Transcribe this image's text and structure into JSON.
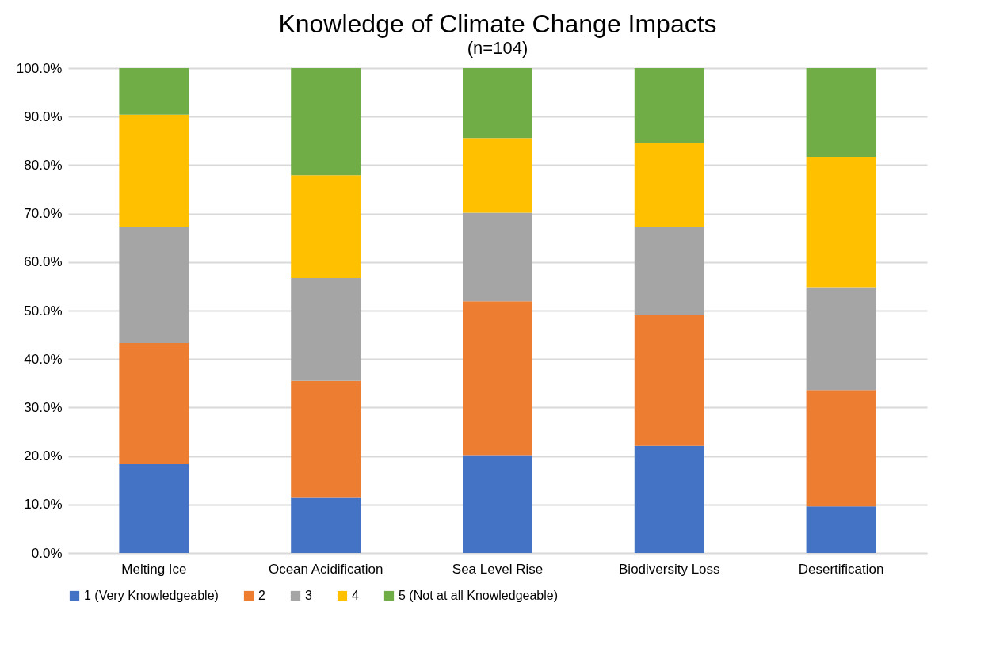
{
  "chart_data": {
    "type": "bar",
    "title": "Knowledge of Climate Change Impacts",
    "subtitle": "(n=104)",
    "categories": [
      "Melting Ice",
      "Ocean Acidification",
      "Sea Level Rise",
      "Biodiversity Loss",
      "Desertification"
    ],
    "stacked": true,
    "series": [
      {
        "name": "1 (Very Knowledgeable)",
        "color": "#4472c4",
        "values": [
          18.3,
          11.5,
          20.2,
          22.1,
          9.6
        ]
      },
      {
        "name": "2",
        "color": "#ed7d31",
        "values": [
          25.0,
          24.0,
          31.7,
          26.9,
          24.0
        ]
      },
      {
        "name": "3",
        "color": "#a5a5a5",
        "values": [
          24.0,
          21.2,
          18.3,
          18.3,
          21.2
        ]
      },
      {
        "name": "4",
        "color": "#ffc000",
        "values": [
          23.1,
          21.2,
          15.4,
          17.3,
          26.9
        ]
      },
      {
        "name": "5 (Not at all Knowledgeable)",
        "color": "#70ad47",
        "values": [
          9.6,
          22.1,
          14.4,
          15.4,
          18.3
        ]
      }
    ],
    "ylim": [
      0,
      100
    ],
    "yticks": [
      {
        "value": 0,
        "label": "0.0%"
      },
      {
        "value": 10,
        "label": "10.0%"
      },
      {
        "value": 20,
        "label": "20.0%"
      },
      {
        "value": 30,
        "label": "30.0%"
      },
      {
        "value": 40,
        "label": "40.0%"
      },
      {
        "value": 50,
        "label": "50.0%"
      },
      {
        "value": 60,
        "label": "60.0%"
      },
      {
        "value": 70,
        "label": "70.0%"
      },
      {
        "value": 80,
        "label": "80.0%"
      },
      {
        "value": 90,
        "label": "90.0%"
      },
      {
        "value": 100,
        "label": "100.0%"
      }
    ],
    "grid": "y",
    "legend": "bottom"
  }
}
